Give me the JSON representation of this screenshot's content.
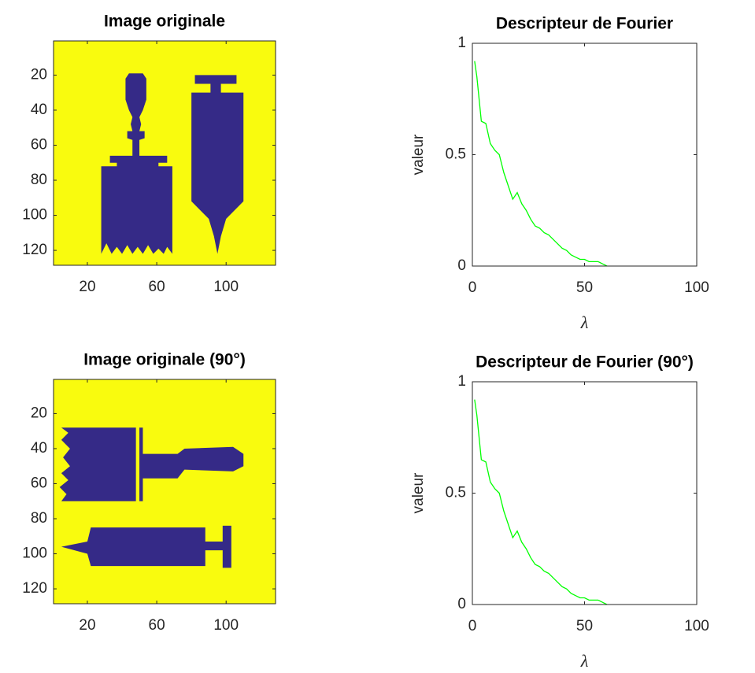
{
  "chart_data": [
    {
      "type": "image",
      "title": "Image originale",
      "xlim": [
        0.5,
        128.5
      ],
      "ylim": [
        0.5,
        128.5
      ],
      "y_direction": "reverse",
      "xticks": [
        20,
        60,
        100
      ],
      "yticks": [
        20,
        40,
        60,
        80,
        100,
        120
      ],
      "background_color": "#f9fb0e",
      "foreground_color": "#352a87"
    },
    {
      "type": "line",
      "title": "Descripteur de Fourier",
      "xlabel": "λ",
      "ylabel": "valeur",
      "color": "#00ff00",
      "xlim": [
        0,
        100
      ],
      "ylim": [
        0,
        1
      ],
      "xticks": [
        0,
        50,
        100
      ],
      "yticks": [
        0,
        0.5,
        1
      ],
      "x": [
        1,
        2,
        3,
        4,
        6,
        8,
        10,
        12,
        14,
        16,
        18,
        20,
        22,
        24,
        26,
        28,
        30,
        32,
        34,
        36,
        38,
        40,
        42,
        44,
        46,
        48,
        50,
        52,
        54,
        56,
        58,
        60
      ],
      "values": [
        0.92,
        0.85,
        0.75,
        0.65,
        0.64,
        0.55,
        0.52,
        0.5,
        0.42,
        0.36,
        0.3,
        0.33,
        0.28,
        0.25,
        0.21,
        0.18,
        0.17,
        0.15,
        0.14,
        0.12,
        0.1,
        0.08,
        0.07,
        0.05,
        0.04,
        0.03,
        0.03,
        0.02,
        0.02,
        0.02,
        0.01,
        0
      ]
    },
    {
      "type": "image",
      "title": "Image originale (90°)",
      "xlim": [
        0.5,
        128.5
      ],
      "ylim": [
        0.5,
        128.5
      ],
      "y_direction": "reverse",
      "xticks": [
        20,
        60,
        100
      ],
      "yticks": [
        20,
        40,
        60,
        80,
        100,
        120
      ],
      "background_color": "#f9fb0e",
      "foreground_color": "#352a87"
    },
    {
      "type": "line",
      "title": "Descripteur de Fourier (90°)",
      "xlabel": "λ",
      "ylabel": "valeur",
      "color": "#00ff00",
      "xlim": [
        0,
        100
      ],
      "ylim": [
        0,
        1
      ],
      "xticks": [
        0,
        50,
        100
      ],
      "yticks": [
        0,
        0.5,
        1
      ],
      "x": [
        1,
        2,
        3,
        4,
        6,
        8,
        10,
        12,
        14,
        16,
        18,
        20,
        22,
        24,
        26,
        28,
        30,
        32,
        34,
        36,
        38,
        40,
        42,
        44,
        46,
        48,
        50,
        52,
        54,
        56,
        58,
        60
      ],
      "values": [
        0.92,
        0.85,
        0.75,
        0.65,
        0.64,
        0.55,
        0.52,
        0.5,
        0.42,
        0.36,
        0.3,
        0.33,
        0.28,
        0.25,
        0.21,
        0.18,
        0.17,
        0.15,
        0.14,
        0.12,
        0.1,
        0.08,
        0.07,
        0.05,
        0.04,
        0.03,
        0.03,
        0.02,
        0.02,
        0.02,
        0.01,
        0
      ]
    }
  ]
}
